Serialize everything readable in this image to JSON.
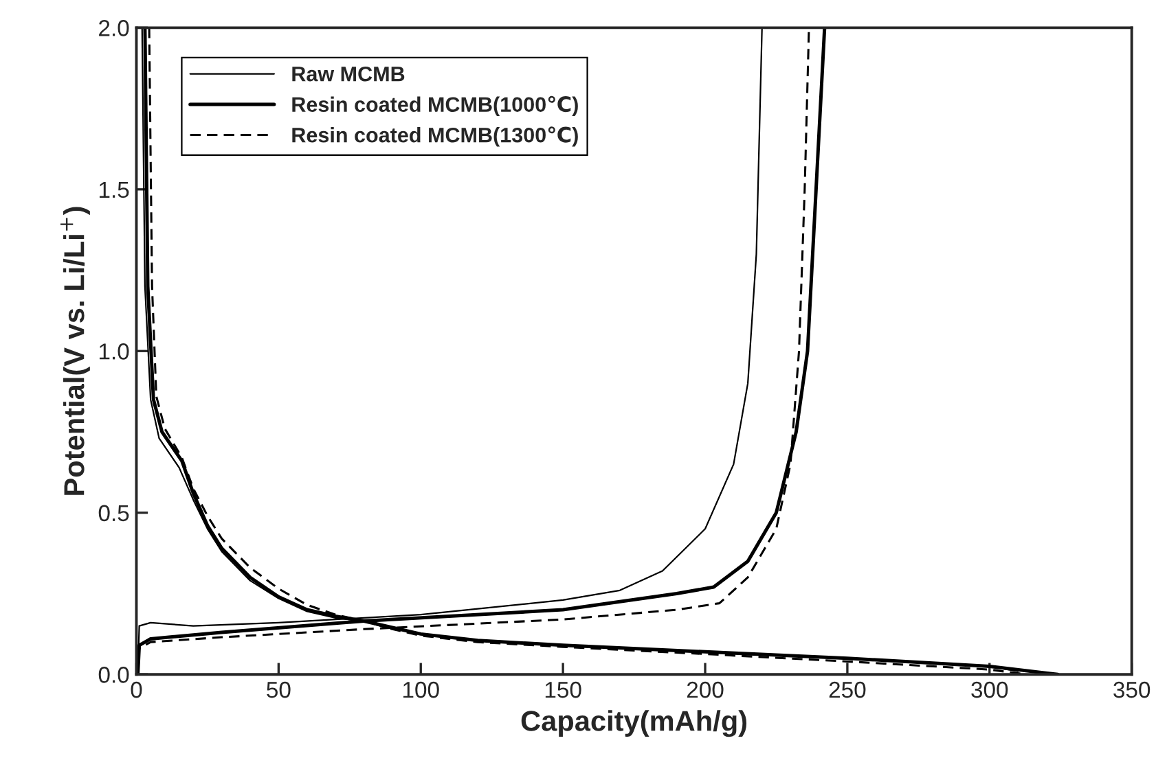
{
  "chart_data": {
    "type": "line",
    "xlabel": "Capacity(mAh/g)",
    "ylabel": "Potential(V vs. Li/Li$^{+}$)",
    "xlim": [
      0,
      350
    ],
    "ylim": [
      0,
      2.0
    ],
    "xticks": [
      0,
      50,
      100,
      150,
      200,
      250,
      300,
      350
    ],
    "yticks": [
      {
        "value": 0,
        "label": "0.0"
      },
      {
        "value": 0.5,
        "label": "0.5"
      },
      {
        "value": 1.0,
        "label": "1.0"
      },
      {
        "value": 1.5,
        "label": "1.5"
      },
      {
        "value": 2.0,
        "label": "2.0"
      }
    ],
    "grid": false,
    "legend": "top left",
    "marker": "none",
    "series": [
      {
        "name": "Raw MCMB",
        "color": "#000000",
        "line_style": "solid",
        "x": [
          0.5,
          1,
          5,
          20,
          50,
          100,
          150,
          170,
          185,
          200,
          210,
          215,
          218,
          220
        ],
        "values": [
          0.0,
          0.15,
          0.16,
          0.15,
          0.16,
          0.185,
          0.23,
          0.26,
          0.32,
          0.45,
          0.65,
          0.9,
          1.3,
          2.0
        ]
      },
      {
        "name": "Resin coated MCMB(1000℃)",
        "color": "#000000",
        "line_style": "solid",
        "x": [
          0.5,
          1,
          5,
          30,
          80,
          150,
          190,
          203,
          215,
          225,
          232,
          236,
          239,
          242
        ],
        "values": [
          0.0,
          0.09,
          0.11,
          0.13,
          0.165,
          0.2,
          0.25,
          0.27,
          0.35,
          0.5,
          0.75,
          1.0,
          1.5,
          2.0
        ]
      },
      {
        "name": "Resin coated MCMB(1300℃)",
        "color": "#000000",
        "line_style": "dashed",
        "x": [
          0.5,
          1,
          5,
          30,
          80,
          150,
          190,
          205,
          215,
          225,
          230,
          233,
          235,
          236.5
        ],
        "values": [
          0.0,
          0.08,
          0.1,
          0.115,
          0.14,
          0.17,
          0.2,
          0.22,
          0.3,
          0.45,
          0.65,
          1.0,
          1.5,
          2.0
        ]
      },
      {
        "color": "#000000",
        "line_style": "solid",
        "x": [
          2,
          3,
          5,
          8,
          15,
          20,
          25,
          30,
          40,
          50,
          60,
          70,
          80,
          90,
          100,
          120,
          150,
          200,
          250,
          300,
          310
        ],
        "values": [
          2.0,
          1.2,
          0.85,
          0.73,
          0.64,
          0.54,
          0.45,
          0.38,
          0.29,
          0.235,
          0.195,
          0.175,
          0.165,
          0.145,
          0.125,
          0.105,
          0.09,
          0.07,
          0.05,
          0.025,
          0.01
        ]
      },
      {
        "color": "#000000",
        "line_style": "solid",
        "x": [
          3,
          4,
          6,
          9,
          16,
          20,
          25,
          30,
          40,
          50,
          60,
          70,
          80,
          90,
          100,
          120,
          150,
          200,
          250,
          300,
          324
        ],
        "values": [
          2.0,
          1.2,
          0.85,
          0.75,
          0.66,
          0.56,
          0.46,
          0.39,
          0.3,
          0.24,
          0.2,
          0.18,
          0.165,
          0.145,
          0.125,
          0.105,
          0.09,
          0.07,
          0.05,
          0.025,
          0.0
        ]
      },
      {
        "color": "#000000",
        "line_style": "dashed",
        "x": [
          4.5,
          5.5,
          7,
          10,
          16,
          20,
          25,
          30,
          40,
          50,
          60,
          70,
          80,
          90,
          100,
          120,
          150,
          200,
          250,
          300,
          313
        ],
        "values": [
          2.0,
          1.2,
          0.86,
          0.76,
          0.67,
          0.575,
          0.49,
          0.42,
          0.33,
          0.265,
          0.215,
          0.185,
          0.165,
          0.14,
          0.12,
          0.1,
          0.085,
          0.063,
          0.04,
          0.015,
          0.0
        ]
      }
    ]
  }
}
